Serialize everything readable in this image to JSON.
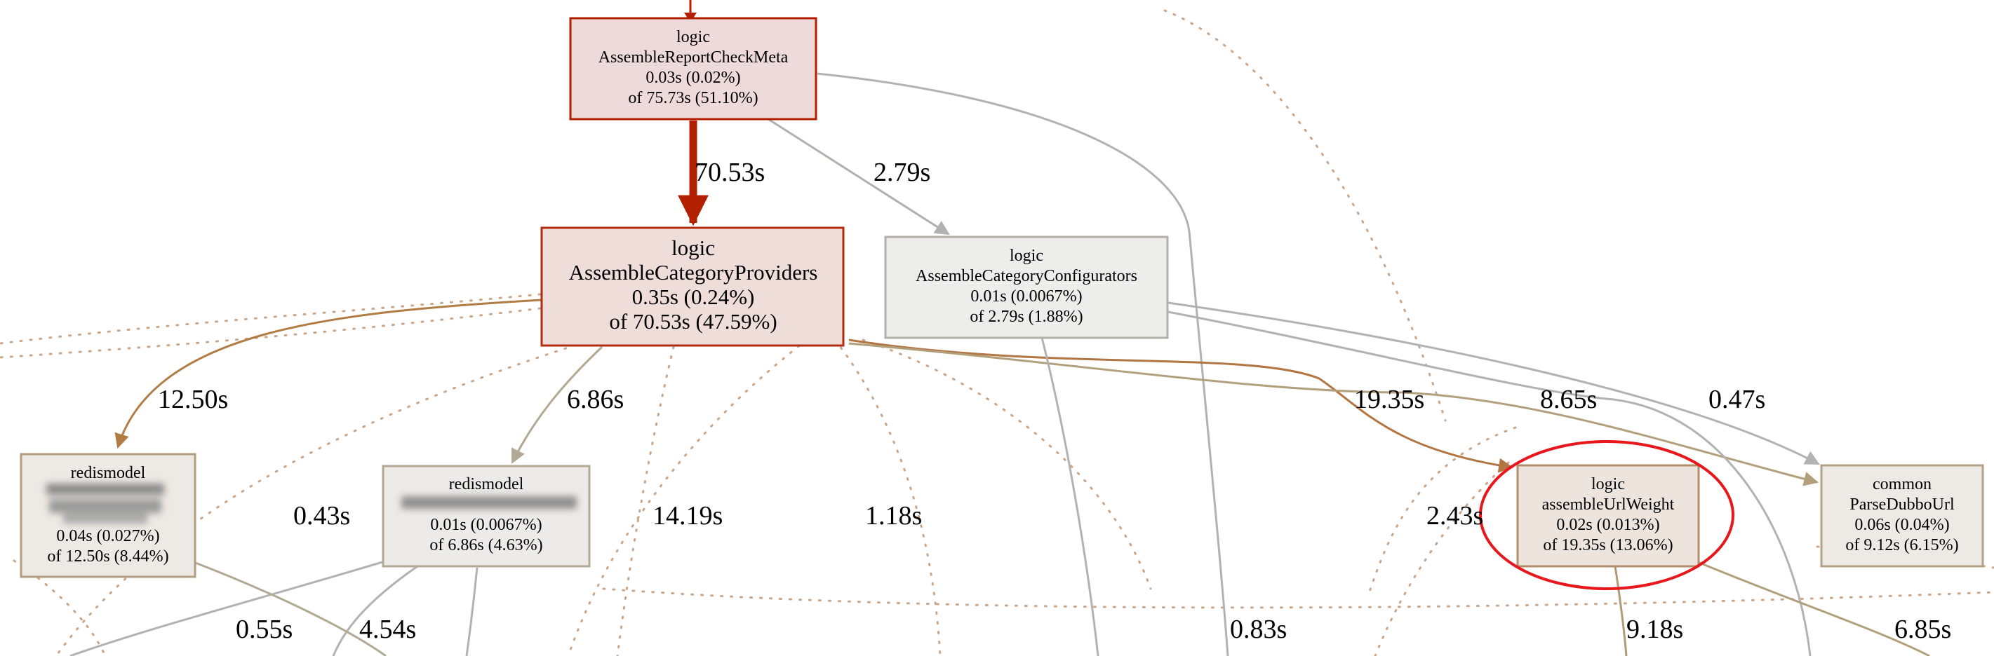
{
  "colors": {
    "hot_edge": "#b22000",
    "warm_edge": "#b27c45",
    "tan_edge": "#b2a07c",
    "grey_edge": "#b2b2b2",
    "dotted_edge": "#c9a58a",
    "highlight_ellipse": "#e8171b"
  },
  "nodes": [
    {
      "id": "assemble-report-check-meta",
      "pkg": "logic",
      "func": "AssembleReportCheckMeta",
      "flat": "0.03s (0.02%)",
      "cum": "of 75.73s (51.10%)",
      "fill": "#eedada",
      "stroke": "#b22000"
    },
    {
      "id": "assemble-category-providers",
      "pkg": "logic",
      "func": "AssembleCategoryProviders",
      "flat": "0.35s (0.24%)",
      "cum": "of 70.53s (47.59%)",
      "fill": "#eeddd8",
      "stroke": "#b22b0e"
    },
    {
      "id": "assemble-category-configurators",
      "pkg": "logic",
      "func": "AssembleCategoryConfigurators",
      "flat": "0.01s (0.0067%)",
      "cum": "of 2.79s (1.88%)",
      "fill": "#ededec",
      "stroke": "#b2b0aa"
    },
    {
      "id": "redismodel-left",
      "pkg": "redismodel",
      "func": "",
      "flat": "0.04s (0.027%)",
      "cum": "of 12.50s (8.44%)",
      "fill": "#ede9e5",
      "stroke": "#b29d80"
    },
    {
      "id": "redismodel-mid",
      "pkg": "redismodel",
      "func": "",
      "flat": "0.01s (0.0067%)",
      "cum": "of 6.86s (4.63%)",
      "fill": "#edebe8",
      "stroke": "#b2a893"
    },
    {
      "id": "assemble-url-weight",
      "pkg": "logic",
      "func": "assembleUrlWeight",
      "flat": "0.02s (0.013%)",
      "cum": "of 19.35s (13.06%)",
      "fill": "#ede4de",
      "stroke": "#b28e6a"
    },
    {
      "id": "parse-dubbo-url",
      "pkg": "common",
      "func": "ParseDubboUrl",
      "flat": "0.06s (0.04%)",
      "cum": "of 9.12s (6.15%)",
      "fill": "#ede9e4",
      "stroke": "#b2a184"
    }
  ],
  "edge_labels": [
    "70.53s",
    "2.79s",
    "12.50s",
    "6.86s",
    "19.35s",
    "8.65s",
    "0.47s",
    "0.43s",
    "14.19s",
    "1.18s",
    "2.43s",
    "0.55s",
    "4.54s",
    "0.83s",
    "9.18s",
    "6.85s"
  ]
}
